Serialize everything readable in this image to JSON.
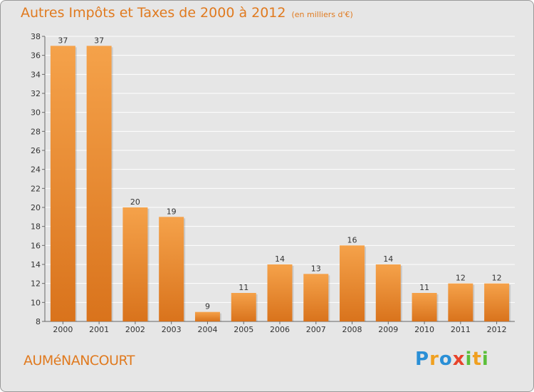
{
  "header": {
    "title": "Autres Impôts et Taxes de 2000 à 2012",
    "subtitle": "(en milliers d'€)"
  },
  "footer": {
    "commune": "AUMéNANCOURT",
    "logo_text": "Proxiti"
  },
  "colors": {
    "bar_light": "#f5a24a",
    "bar_dark": "#d9731c",
    "title": "#e07a1f",
    "plot_bg": "#e6e6e6",
    "grid": "#ffffff"
  },
  "chart_data": {
    "type": "bar",
    "title": "Autres Impôts et Taxes de 2000 à 2012",
    "subtitle": "(en milliers d'€)",
    "categories": [
      "2000",
      "2001",
      "2002",
      "2003",
      "2004",
      "2005",
      "2006",
      "2007",
      "2008",
      "2009",
      "2010",
      "2011",
      "2012"
    ],
    "values": [
      37,
      37,
      20,
      19,
      9,
      11,
      14,
      13,
      16,
      14,
      11,
      12,
      12
    ],
    "ylim": [
      8,
      38
    ],
    "yticks": [
      8,
      10,
      12,
      14,
      16,
      18,
      20,
      22,
      24,
      26,
      28,
      30,
      32,
      34,
      36,
      38
    ],
    "grid": true,
    "data_labels": true
  }
}
